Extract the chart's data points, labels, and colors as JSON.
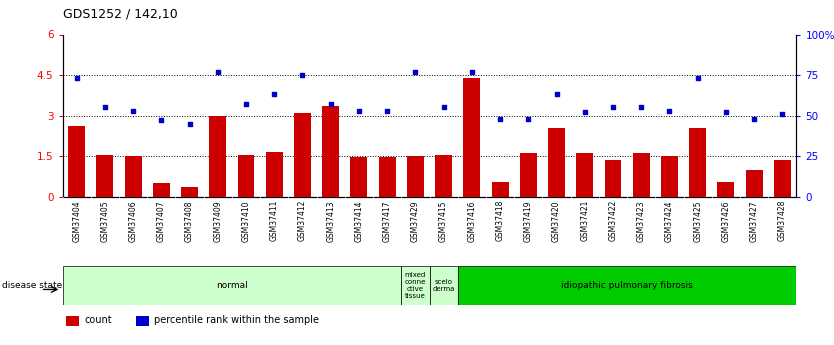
{
  "title": "GDS1252 / 142,10",
  "samples": [
    "GSM37404",
    "GSM37405",
    "GSM37406",
    "GSM37407",
    "GSM37408",
    "GSM37409",
    "GSM37410",
    "GSM37411",
    "GSM37412",
    "GSM37413",
    "GSM37414",
    "GSM37417",
    "GSM37429",
    "GSM37415",
    "GSM37416",
    "GSM37418",
    "GSM37419",
    "GSM37420",
    "GSM37421",
    "GSM37422",
    "GSM37423",
    "GSM37424",
    "GSM37425",
    "GSM37426",
    "GSM37427",
    "GSM37428"
  ],
  "counts": [
    2.6,
    1.55,
    1.5,
    0.5,
    0.35,
    3.0,
    1.55,
    1.65,
    3.1,
    3.35,
    1.45,
    1.45,
    1.5,
    1.55,
    4.4,
    0.55,
    1.6,
    2.55,
    1.6,
    1.35,
    1.6,
    1.5,
    2.55,
    0.55,
    1.0,
    1.35
  ],
  "percentiles": [
    73,
    55,
    53,
    47,
    45,
    77,
    57,
    63,
    75,
    57,
    53,
    53,
    77,
    55,
    77,
    48,
    48,
    63,
    52,
    55,
    55,
    53,
    73,
    52,
    48,
    51
  ],
  "bar_color": "#cc0000",
  "dot_color": "#0000cc",
  "ylim_left": [
    0,
    6
  ],
  "ylim_right": [
    0,
    100
  ],
  "yticks_left": [
    0,
    1.5,
    3.0,
    4.5,
    6.0
  ],
  "ytick_labels_left": [
    "0",
    "1.5",
    "3",
    "4.5",
    "6"
  ],
  "yticks_right": [
    0,
    25,
    50,
    75,
    100
  ],
  "ytick_labels_right": [
    "0",
    "25",
    "50",
    "75",
    "100%"
  ],
  "hlines": [
    1.5,
    3.0,
    4.5
  ],
  "disease_groups": [
    {
      "label": "normal",
      "start": 0,
      "end": 12,
      "color": "#ccffcc",
      "text_color": "#000000"
    },
    {
      "label": "mixed\nconne\nctive\ntissue",
      "start": 12,
      "end": 13,
      "color": "#ccffcc",
      "text_color": "#000000"
    },
    {
      "label": "scelo\nderma",
      "start": 13,
      "end": 14,
      "color": "#ccffcc",
      "text_color": "#000000"
    },
    {
      "label": "idiopathic pulmonary fibrosis",
      "start": 14,
      "end": 26,
      "color": "#00cc00",
      "text_color": "#000000"
    }
  ],
  "bg_color": "#ffffff",
  "plot_bg_color": "#ffffff",
  "tick_area_color": "#cccccc",
  "border_color": "#000000"
}
